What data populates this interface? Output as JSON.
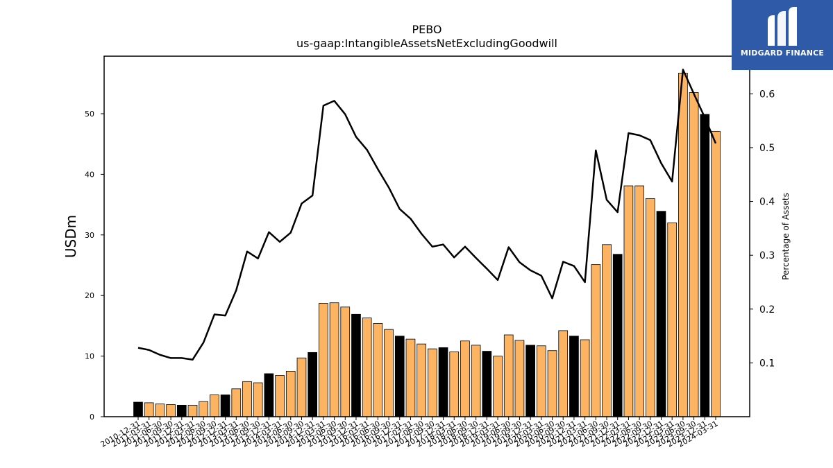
{
  "logo": {
    "text": "MIDGARD FINANCE",
    "background": "#2f5aa8"
  },
  "chart_data": {
    "type": "bar",
    "title": "PEBO",
    "subtitle": "us-gaap:IntangibleAssetsNetExcludingGoodwill",
    "ylabel": "USDm",
    "y2label": "Percentage of Assets",
    "ylim": [
      0,
      59.5
    ],
    "y2lim": [
      0.0,
      0.67
    ],
    "yticks": [
      0,
      10,
      20,
      30,
      40,
      50
    ],
    "y2ticks": [
      0.1,
      0.2,
      0.3,
      0.4,
      0.5,
      0.6
    ],
    "x_tick_labels": [
      "2010-12-31",
      "2011-03-31",
      "2011-06-30",
      "2011-09-30",
      "2011-12-31",
      "2012-03-31",
      "2012-06-30",
      "2012-09-30",
      "2012-12-31",
      "2013-03-31",
      "2013-06-30",
      "2013-09-30",
      "2013-12-31",
      "2014-03-31",
      "2014-06-30",
      "2014-09-30",
      "2014-12-31",
      "2015-03-31",
      "2015-06-30",
      "2015-09-30",
      "2015-12-31",
      "2016-03-31",
      "2016-06-30",
      "2016-09-30",
      "2016-12-31",
      "2017-03-31",
      "2017-06-30",
      "2017-09-30",
      "2017-12-31",
      "2018-03-31",
      "2018-06-30",
      "2018-09-30",
      "2018-12-31",
      "2019-03-31",
      "2019-06-30",
      "2019-09-30",
      "2019-12-31",
      "2020-03-31",
      "2020-06-30",
      "2020-09-30",
      "2020-12-31",
      "2021-03-31",
      "2021-06-30",
      "2021-09-30",
      "2021-12-31",
      "2022-03-31",
      "2022-06-30",
      "2022-09-30",
      "2022-12-31",
      "2023-03-31",
      "2023-06-30",
      "2023-09-30",
      "2023-12-31",
      "2024-03-31"
    ],
    "series": [
      {
        "type": "bar",
        "axis": "left",
        "values": [
          2.4,
          2.3,
          2.1,
          2.0,
          1.9,
          1.9,
          2.5,
          3.6,
          3.6,
          4.6,
          5.8,
          5.6,
          7.1,
          6.8,
          7.5,
          9.7,
          10.6,
          18.7,
          18.8,
          18.1,
          16.9,
          16.3,
          15.4,
          14.4,
          13.3,
          12.8,
          12.0,
          11.2,
          11.4,
          10.7,
          12.5,
          11.8,
          10.8,
          10.0,
          13.5,
          12.6,
          11.8,
          11.7,
          10.9,
          14.2,
          13.3,
          12.7,
          25.1,
          28.4,
          26.8,
          38.1,
          38.1,
          36.0,
          33.9,
          32.0,
          56.7,
          53.5,
          49.9,
          47.1
        ],
        "colors_key": "bar colour per bar: black marks Q4 (December) values, orange otherwise",
        "dark_flags": [
          1,
          0,
          0,
          0,
          1,
          0,
          0,
          0,
          1,
          0,
          0,
          0,
          1,
          0,
          0,
          0,
          1,
          0,
          0,
          0,
          1,
          0,
          0,
          0,
          1,
          0,
          0,
          0,
          1,
          0,
          0,
          0,
          1,
          0,
          0,
          0,
          1,
          0,
          0,
          0,
          1,
          0,
          0,
          0,
          1,
          0,
          0,
          0,
          1,
          0,
          0,
          0,
          1,
          0
        ]
      },
      {
        "type": "line",
        "axis": "right",
        "values": [
          0.128,
          0.124,
          0.115,
          0.109,
          0.109,
          0.106,
          0.138,
          0.19,
          0.188,
          0.235,
          0.307,
          0.294,
          0.343,
          0.325,
          0.342,
          0.396,
          0.411,
          0.578,
          0.587,
          0.562,
          0.52,
          0.496,
          0.46,
          0.426,
          0.386,
          0.368,
          0.34,
          0.316,
          0.32,
          0.296,
          0.316,
          0.295,
          0.275,
          0.254,
          0.315,
          0.287,
          0.272,
          0.262,
          0.22,
          0.288,
          0.28,
          0.25,
          0.495,
          0.403,
          0.38,
          0.527,
          0.523,
          0.514,
          0.471,
          0.437,
          0.645,
          0.6,
          0.556,
          0.508
        ]
      }
    ],
    "colors": {
      "bar_default": "#fdb462",
      "bar_dark": "#000000",
      "line": "#000000"
    },
    "grid": false,
    "legend": "none"
  }
}
